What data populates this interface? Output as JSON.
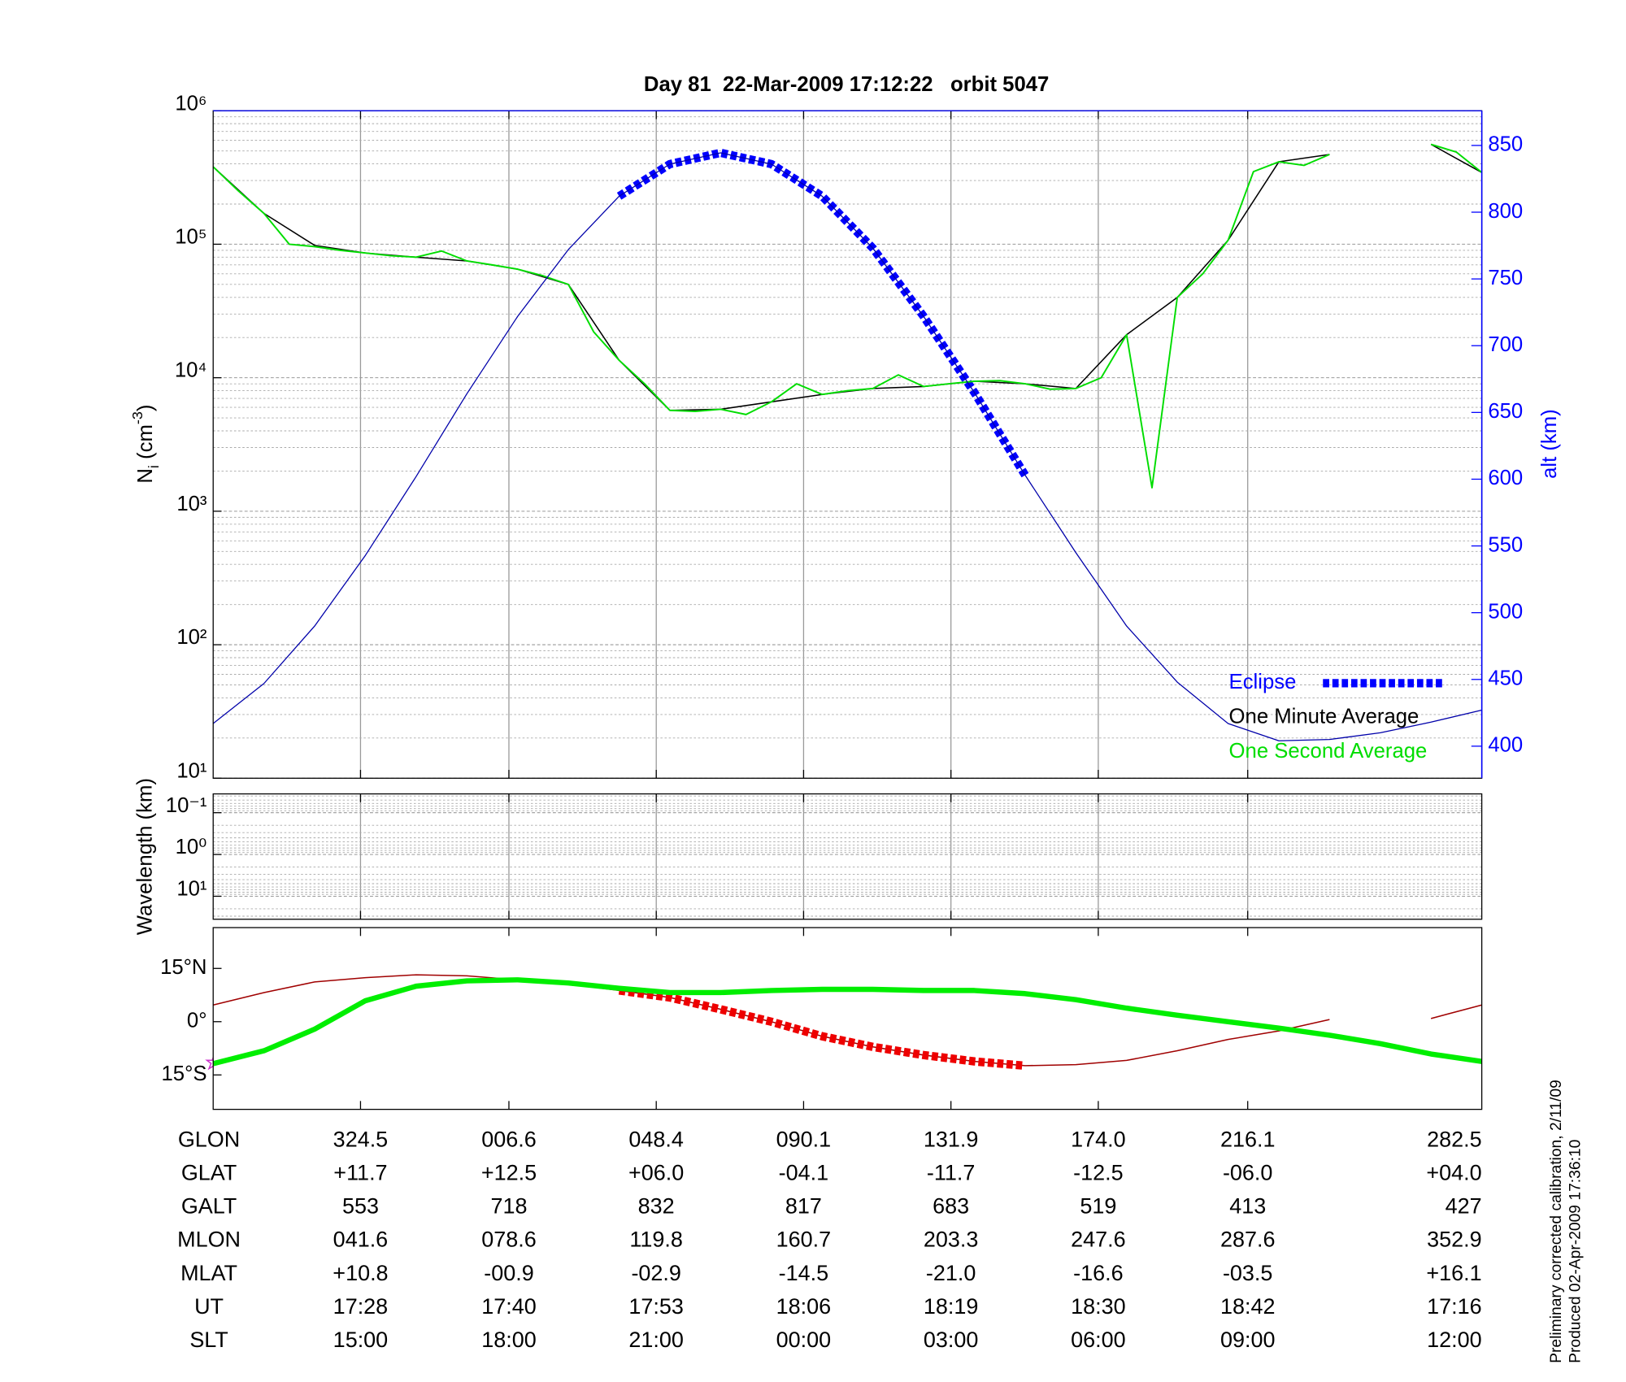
{
  "chart_data": [
    {
      "type": "line",
      "title": "Day 81  22-Mar-2009 17:12:22   orbit 5047",
      "ylabel": [
        "N",
        "i",
        " (cm",
        "-3",
        ")"
      ],
      "y2label": "alt (km)",
      "log": true,
      "ylim": [
        10,
        1000000
      ],
      "yticks": [
        {
          "value": 10,
          "label": "10¹"
        },
        {
          "value": 100,
          "label": "10²"
        },
        {
          "value": 1000,
          "label": "10³"
        },
        {
          "value": 10000,
          "label": "10⁴"
        },
        {
          "value": 100000,
          "label": "10⁵"
        },
        {
          "value": 1000000,
          "label": "10⁶"
        }
      ],
      "y2lim": [
        376,
        876
      ],
      "y2ticks": [
        400,
        450,
        500,
        550,
        600,
        650,
        700,
        750,
        800,
        850
      ],
      "y2color": "#0000ff",
      "grid": true,
      "legend": "lower right",
      "series": [
        {
          "name": "Eclipse",
          "color": "#0000ff",
          "axis": "y2",
          "width": 8,
          "dashed": true,
          "values": [
            null,
            null,
            null,
            null,
            null,
            null,
            null,
            null,
            812,
            836,
            844.5,
            836,
            812,
            773,
            722,
            665,
            603,
            null,
            null,
            null,
            null,
            null,
            null,
            null,
            null,
            null
          ]
        },
        {
          "name": "One Minute Average",
          "color": "#000000",
          "width": 1.2,
          "values": [
            380000,
            170000,
            98000,
            86000,
            80000,
            75000,
            65000,
            50000,
            13500,
            5700,
            5800,
            6600,
            7500,
            8300,
            8600,
            9400,
            9000,
            8300,
            21000,
            40000,
            107000,
            414000,
            470000,
            null,
            560000,
            345000
          ]
        },
        {
          "name": "One Second Average",
          "color": "#00dd00",
          "width": 1.5,
          "values": [
            380000,
            250000,
            170000,
            100000,
            96000,
            90000,
            86000,
            82000,
            80000,
            89000,
            75000,
            70000,
            65000,
            58000,
            50000,
            22000,
            13500,
            9000,
            5700,
            5600,
            5800,
            5300,
            6600,
            9000,
            7500,
            8000,
            8300,
            10500,
            8600,
            9000,
            9400,
            9500,
            9000,
            8200,
            8300,
            10000,
            21000,
            1500,
            40000,
            60000,
            107000,
            350000,
            414000,
            390000,
            470000,
            null,
            null,
            null,
            560000,
            490000,
            345000
          ]
        },
        {
          "color": "#0000aa",
          "axis": "y2",
          "width": 1,
          "values": [
            417,
            447,
            490,
            543,
            602,
            664,
            722,
            772,
            812,
            836,
            844.5,
            836,
            812,
            773,
            722,
            665,
            603,
            545,
            490,
            448,
            417,
            404,
            405,
            410,
            418,
            427
          ]
        }
      ]
    },
    {
      "type": "line",
      "ylabel": "Wavelength (km)",
      "log": true,
      "reversed": true,
      "ylim": [
        0.0355,
        35.5
      ],
      "yticks": [
        {
          "value": 0.1,
          "label": "10⁻¹"
        },
        {
          "value": 1,
          "label": "10⁰"
        },
        {
          "value": 10,
          "label": "10¹"
        }
      ],
      "grid": true,
      "series": []
    },
    {
      "type": "line",
      "ylim": [
        -24.7,
        26.5
      ],
      "yticks": [
        {
          "value": 15,
          "label": "15°N"
        },
        {
          "value": 0,
          "label": "0°"
        },
        {
          "value": -15,
          "label": "15°S"
        }
      ],
      "series": [
        {
          "color": "#a00000",
          "width": 1.2,
          "values": [
            4.7,
            8.2,
            11.2,
            12.4,
            13.2,
            12.9,
            11.8,
            10.6,
            8.8,
            6.8,
            3.5,
            0,
            -4.1,
            -7.1,
            -9.4,
            -11.2,
            -12.4,
            -12.1,
            -10.9,
            -8.2,
            -5.0,
            -2.6,
            0.6,
            null,
            0.9,
            4.7
          ]
        },
        {
          "color": "#ee0000",
          "width": 8,
          "dashed": true,
          "values": [
            null,
            null,
            null,
            null,
            null,
            null,
            null,
            null,
            8.8,
            6.8,
            3.5,
            0,
            -4.1,
            -7.1,
            -9.4,
            -11.2,
            -12.4,
            null,
            null,
            null,
            null,
            null,
            null,
            null,
            null,
            null
          ]
        },
        {
          "color": "#00ee00",
          "width": 5,
          "values": [
            -11.8,
            -8.2,
            -2.1,
            5.9,
            10.0,
            11.5,
            11.8,
            10.9,
            9.4,
            8.2,
            8.2,
            8.8,
            9.1,
            9.1,
            8.8,
            8.8,
            7.9,
            6.2,
            3.8,
            1.8,
            0,
            -1.8,
            -3.8,
            -6.2,
            -9.1,
            -11.2
          ]
        }
      ]
    }
  ],
  "orbit_table": {
    "rows": [
      {
        "label": "GLON",
        "values": [
          "324.5",
          "006.6",
          "048.4",
          "090.1",
          "131.9",
          "174.0",
          "216.1",
          "282.5"
        ]
      },
      {
        "label": "GLAT",
        "values": [
          "+11.7",
          "+12.5",
          "+06.0",
          "-04.1",
          "-11.7",
          "-12.5",
          "-06.0",
          "+04.0"
        ]
      },
      {
        "label": "GALT",
        "values": [
          "553",
          "718",
          "832",
          "817",
          "683",
          "519",
          "413",
          "427"
        ]
      },
      {
        "label": "MLON",
        "values": [
          "041.6",
          "078.6",
          "119.8",
          "160.7",
          "203.3",
          "247.6",
          "287.6",
          "352.9"
        ]
      },
      {
        "label": "MLAT",
        "values": [
          "+10.8",
          "-00.9",
          "-02.9",
          "-14.5",
          "-21.0",
          "-16.6",
          "-03.5",
          "+16.1"
        ]
      },
      {
        "label": "UT",
        "values": [
          "17:28",
          "17:40",
          "17:53",
          "18:06",
          "18:19",
          "18:30",
          "18:42",
          "17:16"
        ]
      },
      {
        "label": "SLT",
        "values": [
          "15:00",
          "18:00",
          "21:00",
          "00:00",
          "03:00",
          "06:00",
          "09:00",
          "12:00"
        ]
      }
    ]
  },
  "footnotes": [
    "Preliminary corrected calibration, 2/11/09",
    "Produced 02-Apr-2009 17:36:10"
  ]
}
